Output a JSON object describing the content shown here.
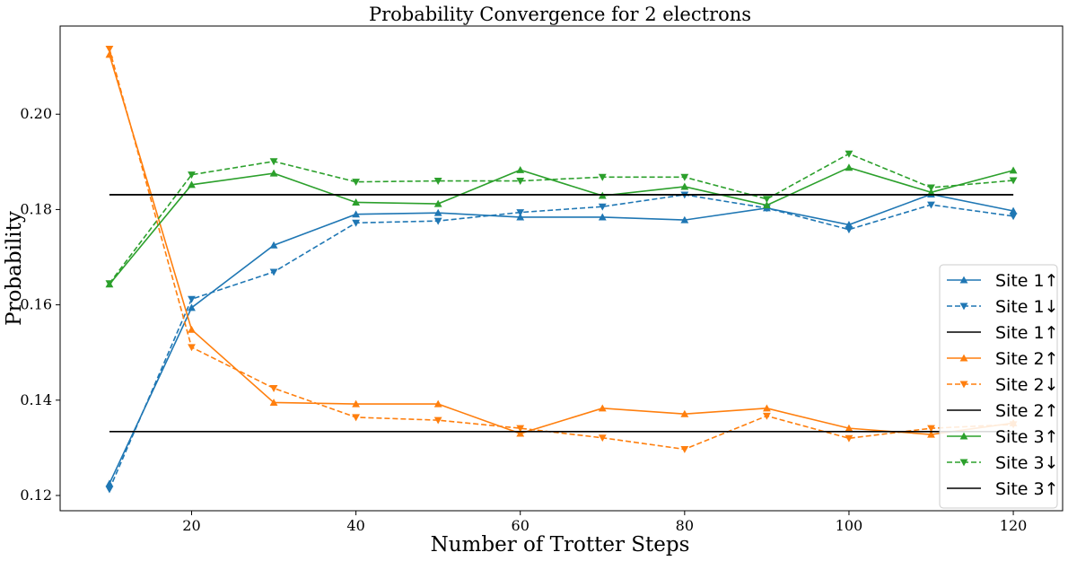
{
  "chart_data": {
    "type": "line",
    "title": "Probability Convergence for 2 electrons",
    "xlabel": "Number of Trotter Steps",
    "ylabel": "Probability",
    "xlim": [
      4,
      126
    ],
    "ylim": [
      0.1168,
      0.2185
    ],
    "xticks": [
      20,
      40,
      60,
      80,
      100,
      120
    ],
    "yticks": [
      0.12,
      0.14,
      0.16,
      0.18,
      0.2
    ],
    "ytick_labels": [
      "0.12",
      "0.14",
      "0.16",
      "0.18",
      "0.20"
    ],
    "grid": false,
    "legend_position": "bottom-right",
    "x": [
      10,
      20,
      30,
      40,
      50,
      60,
      70,
      80,
      90,
      100,
      110,
      120
    ],
    "series": [
      {
        "name": "Site 1↑",
        "color": "#1f77b4",
        "style": "solid",
        "marker": "triangle-up",
        "values": [
          0.1225,
          0.1594,
          0.1725,
          0.179,
          0.1793,
          0.1784,
          0.1784,
          0.1778,
          0.1803,
          0.1768,
          0.1832,
          0.1797
        ]
      },
      {
        "name": "Site 1↓",
        "color": "#1f77b4",
        "style": "dashed",
        "marker": "triangle-down",
        "values": [
          0.1213,
          0.1612,
          0.1669,
          0.1772,
          0.1776,
          0.1794,
          0.1806,
          0.1831,
          0.1803,
          0.1758,
          0.181,
          0.1786
        ]
      },
      {
        "name": "Site 1↑",
        "color": "#000000",
        "style": "solid",
        "marker": "none",
        "constant": 0.1831
      },
      {
        "name": "Site 2↑",
        "color": "#ff7f0e",
        "style": "solid",
        "marker": "triangle-up",
        "values": [
          0.2125,
          0.1548,
          0.1395,
          0.1392,
          0.1392,
          0.133,
          0.1383,
          0.1371,
          0.1383,
          0.1341,
          0.1328,
          0.1352
        ]
      },
      {
        "name": "Site 2↓",
        "color": "#ff7f0e",
        "style": "dashed",
        "marker": "triangle-down",
        "values": [
          0.2137,
          0.1511,
          0.1425,
          0.1364,
          0.1358,
          0.1341,
          0.1321,
          0.1297,
          0.1367,
          0.132,
          0.1341,
          0.1349
        ]
      },
      {
        "name": "Site 2↑",
        "color": "#000000",
        "style": "solid",
        "marker": "none",
        "constant": 0.1334
      },
      {
        "name": "Site 3↑",
        "color": "#2ca02c",
        "style": "solid",
        "marker": "triangle-up",
        "values": [
          0.1643,
          0.1852,
          0.1876,
          0.1815,
          0.1812,
          0.1883,
          0.1829,
          0.1848,
          0.1809,
          0.1888,
          0.1836,
          0.1882
        ]
      },
      {
        "name": "Site 3↓",
        "color": "#2ca02c",
        "style": "dashed",
        "marker": "triangle-down",
        "values": [
          0.1645,
          0.1873,
          0.1901,
          0.1858,
          0.186,
          0.186,
          0.1868,
          0.1868,
          0.1822,
          0.1917,
          0.1846,
          0.1861
        ]
      },
      {
        "name": "Site 3↑",
        "color": "#000000",
        "style": "solid",
        "marker": "none",
        "constant": 0.1831
      }
    ]
  }
}
